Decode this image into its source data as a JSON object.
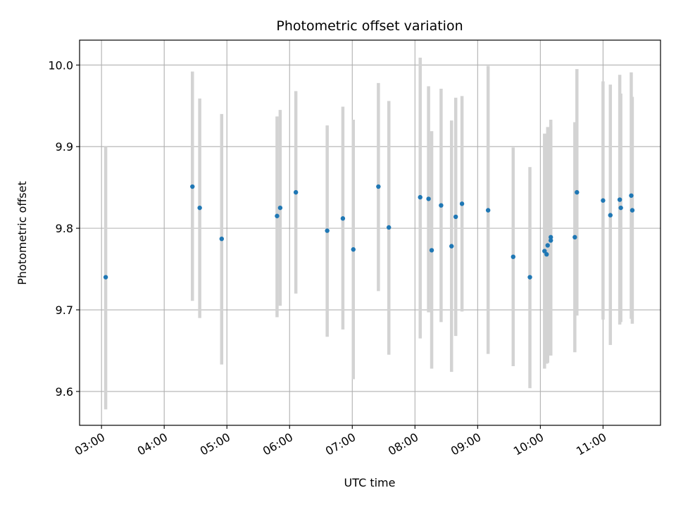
{
  "chart_data": {
    "type": "scatter",
    "title": "Photometric offset variation",
    "xlabel": "UTC time",
    "ylabel": "Photometric offset",
    "x_unit": "HH:MM",
    "xlim": [
      "02:39",
      "11:55"
    ],
    "ylim": [
      9.5585,
      10.0305
    ],
    "grid": true,
    "x_ticks": [
      "03:00",
      "04:00",
      "05:00",
      "06:00",
      "07:00",
      "08:00",
      "09:00",
      "10:00",
      "11:00"
    ],
    "y_ticks": [
      9.6,
      9.7,
      9.8,
      9.9,
      10.0
    ],
    "y_tick_labels": [
      "9.6",
      "9.7",
      "9.8",
      "9.9",
      "10.0"
    ],
    "colors": {
      "point": "#1f77b4",
      "errorbar": "#d3d3d3",
      "grid": "#b0b0b0"
    },
    "points": [
      {
        "x": "03:04",
        "y": 9.74,
        "y_low": 9.578,
        "y_high": 9.9
      },
      {
        "x": "04:27",
        "y": 9.851,
        "y_low": 9.711,
        "y_high": 9.992
      },
      {
        "x": "04:34",
        "y": 9.825,
        "y_low": 9.69,
        "y_high": 9.959
      },
      {
        "x": "04:55",
        "y": 9.787,
        "y_low": 9.633,
        "y_high": 9.94
      },
      {
        "x": "05:48",
        "y": 9.815,
        "y_low": 9.691,
        "y_high": 9.937
      },
      {
        "x": "05:51",
        "y": 9.825,
        "y_low": 9.705,
        "y_high": 9.945
      },
      {
        "x": "06:06",
        "y": 9.844,
        "y_low": 9.72,
        "y_high": 9.968
      },
      {
        "x": "06:36",
        "y": 9.797,
        "y_low": 9.667,
        "y_high": 9.926
      },
      {
        "x": "06:51",
        "y": 9.812,
        "y_low": 9.676,
        "y_high": 9.949
      },
      {
        "x": "07:01",
        "y": 9.774,
        "y_low": 9.615,
        "y_high": 9.933
      },
      {
        "x": "07:25",
        "y": 9.851,
        "y_low": 9.723,
        "y_high": 9.978
      },
      {
        "x": "07:35",
        "y": 9.801,
        "y_low": 9.645,
        "y_high": 9.956
      },
      {
        "x": "08:05",
        "y": 9.838,
        "y_low": 9.665,
        "y_high": 10.009
      },
      {
        "x": "08:13",
        "y": 9.836,
        "y_low": 9.697,
        "y_high": 9.974
      },
      {
        "x": "08:16",
        "y": 9.773,
        "y_low": 9.628,
        "y_high": 9.919
      },
      {
        "x": "08:25",
        "y": 9.828,
        "y_low": 9.685,
        "y_high": 9.971
      },
      {
        "x": "08:35",
        "y": 9.778,
        "y_low": 9.624,
        "y_high": 9.932
      },
      {
        "x": "08:39",
        "y": 9.814,
        "y_low": 9.668,
        "y_high": 9.96
      },
      {
        "x": "08:45",
        "y": 9.83,
        "y_low": 9.698,
        "y_high": 9.962
      },
      {
        "x": "09:10",
        "y": 9.822,
        "y_low": 9.646,
        "y_high": 9.999
      },
      {
        "x": "09:34",
        "y": 9.765,
        "y_low": 9.631,
        "y_high": 9.899
      },
      {
        "x": "09:50",
        "y": 9.74,
        "y_low": 9.604,
        "y_high": 9.875
      },
      {
        "x": "10:04",
        "y": 9.772,
        "y_low": 9.628,
        "y_high": 9.916
      },
      {
        "x": "10:06",
        "y": 9.768,
        "y_low": 9.634,
        "y_high": 9.904
      },
      {
        "x": "10:07",
        "y": 9.779,
        "y_low": 9.635,
        "y_high": 9.924
      },
      {
        "x": "10:10",
        "y": 9.789,
        "y_low": 9.644,
        "y_high": 9.933
      },
      {
        "x": "10:10",
        "y": 9.785,
        "y_low": 9.644,
        "y_high": 9.926
      },
      {
        "x": "10:33",
        "y": 9.789,
        "y_low": 9.648,
        "y_high": 9.93
      },
      {
        "x": "10:35",
        "y": 9.844,
        "y_low": 9.693,
        "y_high": 9.995
      },
      {
        "x": "11:00",
        "y": 9.834,
        "y_low": 9.688,
        "y_high": 9.98
      },
      {
        "x": "11:07",
        "y": 9.816,
        "y_low": 9.657,
        "y_high": 9.976
      },
      {
        "x": "11:16",
        "y": 9.835,
        "y_low": 9.682,
        "y_high": 9.988
      },
      {
        "x": "11:17",
        "y": 9.825,
        "y_low": 9.685,
        "y_high": 9.965
      },
      {
        "x": "11:27",
        "y": 9.84,
        "y_low": 9.689,
        "y_high": 9.991
      },
      {
        "x": "11:28",
        "y": 9.822,
        "y_low": 9.683,
        "y_high": 9.961
      }
    ]
  }
}
